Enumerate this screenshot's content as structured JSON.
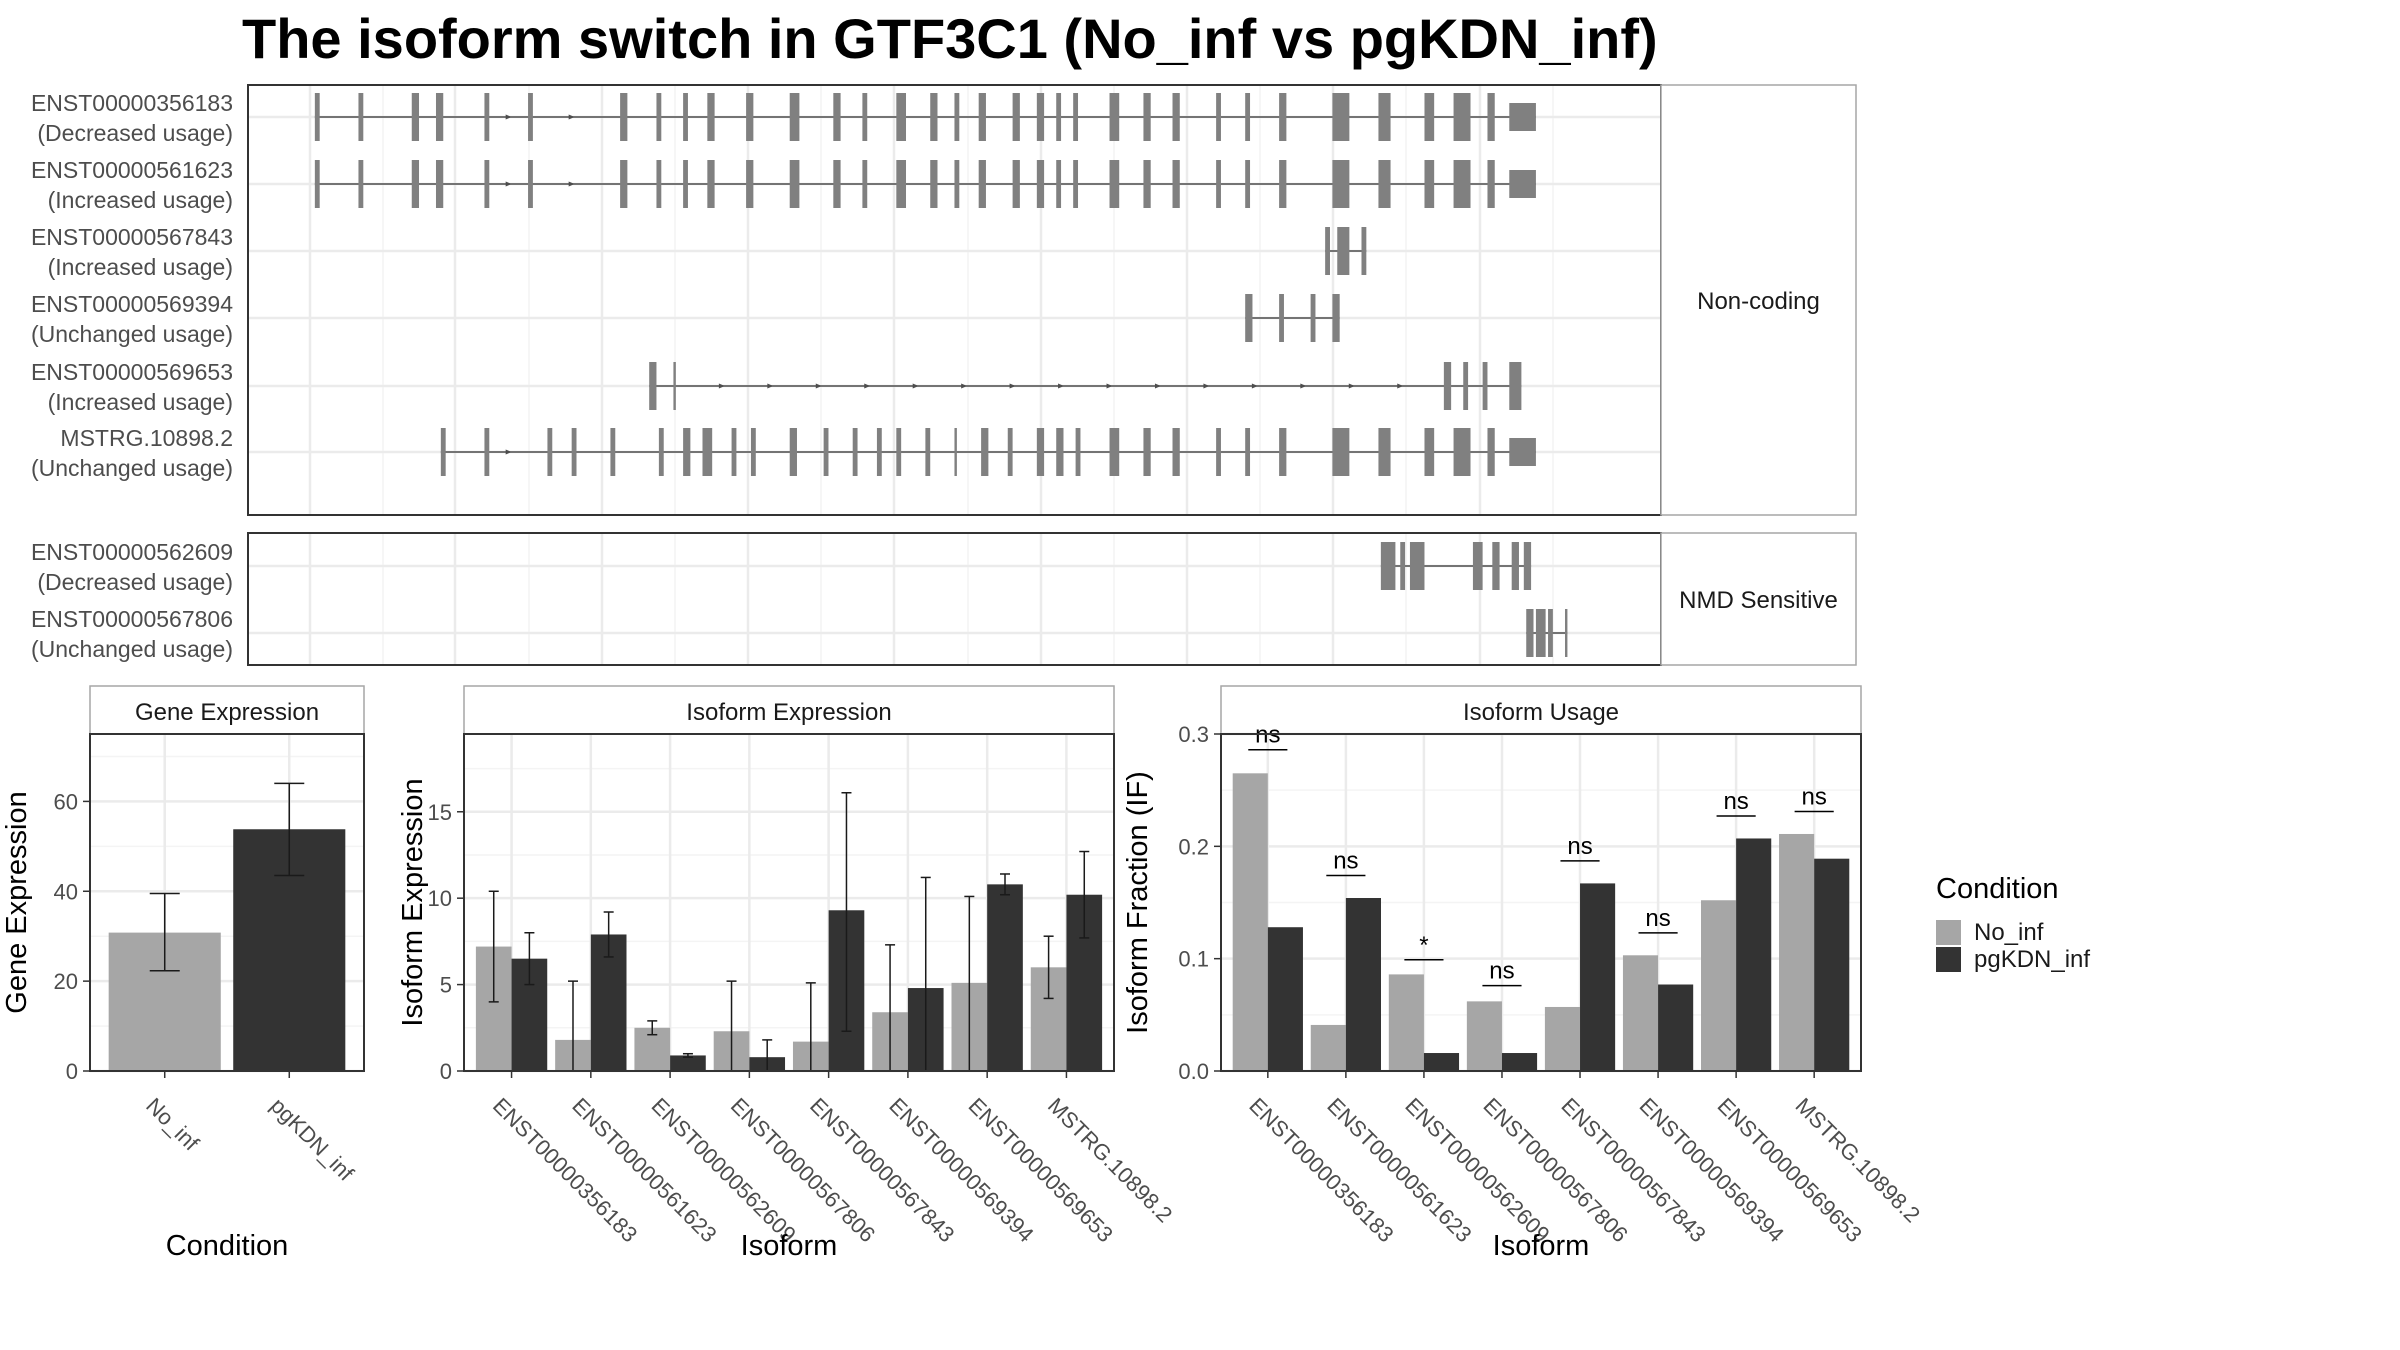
{
  "title": "The isoform switch in GTF3C1 (No_inf vs pgKDN_inf)",
  "colors": {
    "No_inf": "#a6a6a6",
    "pgKDN_inf": "#333333",
    "exon": "#808080"
  },
  "structure": {
    "groups": [
      {
        "label": "Non-coding",
        "tracks": [
          {
            "id": "ENST00000356183",
            "usage": "(Decreased usage)",
            "exons": [
              [
                1,
                2
              ],
              [
                10,
                11
              ],
              [
                21,
                22.5
              ],
              [
                26,
                27.5
              ],
              [
                36,
                37
              ],
              [
                45,
                46
              ],
              [
                64,
                65.5
              ],
              [
                71.5,
                72.5
              ],
              [
                77,
                78
              ],
              [
                82,
                83.5
              ],
              [
                90,
                91.5
              ],
              [
                99,
                101
              ],
              [
                108,
                109.5
              ],
              [
                114,
                115
              ],
              [
                121,
                123
              ],
              [
                128,
                129.5
              ],
              [
                133,
                134
              ],
              [
                138,
                139.5
              ],
              [
                145,
                146.5
              ],
              [
                150,
                151.5
              ],
              [
                154,
                155
              ],
              [
                157.5,
                158.5
              ],
              [
                165,
                167
              ],
              [
                172,
                173.5
              ],
              [
                178,
                179.5
              ],
              [
                187,
                188
              ],
              [
                193,
                194
              ],
              [
                200,
                201.5
              ],
              [
                211,
                214.5
              ],
              [
                220.5,
                223
              ],
              [
                230,
                232
              ],
              [
                236,
                239.5
              ],
              [
                243,
                244.5
              ],
              [
                247.5,
                253
              ]
            ],
            "arrows": [
              41,
              54
            ]
          },
          {
            "id": "ENST00000561623",
            "usage": "(Increased usage)",
            "exons": [
              [
                1,
                2
              ],
              [
                10,
                11
              ],
              [
                21,
                22.5
              ],
              [
                26,
                27.5
              ],
              [
                36,
                37
              ],
              [
                45,
                46
              ],
              [
                64,
                65.5
              ],
              [
                71.5,
                72.5
              ],
              [
                77,
                78
              ],
              [
                82,
                83.5
              ],
              [
                90,
                91.5
              ],
              [
                99,
                101
              ],
              [
                108,
                109.5
              ],
              [
                114,
                115
              ],
              [
                121,
                123
              ],
              [
                128,
                129.5
              ],
              [
                133,
                134
              ],
              [
                138,
                139.5
              ],
              [
                145,
                146.5
              ],
              [
                150,
                151.5
              ],
              [
                154,
                155
              ],
              [
                157.5,
                158.5
              ],
              [
                165,
                167
              ],
              [
                172,
                173.5
              ],
              [
                178,
                179.5
              ],
              [
                187,
                188
              ],
              [
                193,
                194
              ],
              [
                200,
                201.5
              ],
              [
                211,
                214.5
              ],
              [
                220.5,
                223
              ],
              [
                230,
                232
              ],
              [
                236,
                239.5
              ],
              [
                243,
                244.5
              ],
              [
                247.5,
                253
              ]
            ],
            "arrows": [
              41,
              54
            ]
          },
          {
            "id": "ENST00000567843",
            "usage": "(Increased usage)",
            "exons": [
              [
                209.5,
                210.5
              ],
              [
                212,
                214.5
              ],
              [
                217,
                218
              ]
            ],
            "arrows": []
          },
          {
            "id": "ENST00000569394",
            "usage": "(Unchanged usage)",
            "exons": [
              [
                193,
                194.5
              ],
              [
                200,
                201
              ],
              [
                206.5,
                207.5
              ],
              [
                211,
                212.5
              ]
            ],
            "arrows": []
          },
          {
            "id": "ENST00000569653",
            "usage": "(Increased usage)",
            "exons": [
              [
                70,
                71.5
              ],
              [
                75,
                75.5
              ],
              [
                234,
                235.5
              ],
              [
                238,
                239
              ],
              [
                242,
                243
              ],
              [
                247.5,
                250
              ]
            ],
            "arrows": [
              85,
              95,
              105,
              115,
              125,
              135,
              145,
              155,
              165,
              175,
              185,
              195,
              205,
              215,
              225
            ]
          },
          {
            "id": "MSTRG.10898.2",
            "usage": "(Unchanged usage)",
            "exons": [
              [
                27,
                28
              ],
              [
                36,
                37
              ],
              [
                49,
                50
              ],
              [
                54,
                55
              ],
              [
                62,
                63
              ],
              [
                72,
                73
              ],
              [
                77,
                78.5
              ],
              [
                81,
                83
              ],
              [
                87,
                88
              ],
              [
                91,
                92
              ],
              [
                99,
                100.5
              ],
              [
                106,
                107
              ],
              [
                112,
                113
              ],
              [
                117,
                118
              ],
              [
                121,
                122
              ],
              [
                127,
                128
              ],
              [
                133,
                133.5
              ],
              [
                138.5,
                140
              ],
              [
                144,
                145
              ],
              [
                150,
                151.5
              ],
              [
                154,
                155.5
              ],
              [
                158,
                159
              ],
              [
                165,
                167
              ],
              [
                172,
                173.5
              ],
              [
                178,
                179.5
              ],
              [
                187,
                188
              ],
              [
                193,
                194
              ],
              [
                200,
                201.5
              ],
              [
                211,
                214.5
              ],
              [
                220.5,
                223
              ],
              [
                230,
                232
              ],
              [
                236,
                239.5
              ],
              [
                243,
                244.5
              ],
              [
                247.5,
                253
              ]
            ],
            "arrows": [
              41
            ]
          }
        ]
      },
      {
        "label": "NMD Sensitive",
        "tracks": [
          {
            "id": "ENST00000562609",
            "usage": "(Decreased usage)",
            "exons": [
              [
                221,
                224
              ],
              [
                225,
                226
              ],
              [
                227,
                230
              ],
              [
                240,
                242
              ],
              [
                244,
                245.5
              ],
              [
                248,
                249.5
              ],
              [
                250.5,
                252
              ]
            ],
            "arrows": []
          },
          {
            "id": "ENST00000567806",
            "usage": "(Unchanged usage)",
            "exons": [
              [
                251,
                252.5
              ],
              [
                253,
                255
              ],
              [
                255.5,
                256.5
              ],
              [
                259,
                259.5
              ]
            ],
            "arrows": []
          }
        ]
      }
    ]
  },
  "chart_data": [
    {
      "type": "bar",
      "panel": "Gene Expression",
      "xlabel": "Condition",
      "ylabel": "Gene Expression",
      "ylim": [
        0,
        75
      ],
      "yticks": [
        0,
        20,
        40,
        60
      ],
      "categories": [
        "No_inf",
        "pgKDN_inf"
      ],
      "values": [
        30.8,
        53.8
      ],
      "errors": [
        [
          22.3,
          39.5
        ],
        [
          43.5,
          64.0
        ]
      ]
    },
    {
      "type": "bar",
      "panel": "Isoform Expression",
      "xlabel": "Isoform",
      "ylabel": "Isoform Expression",
      "ylim": [
        0,
        19.5
      ],
      "yticks": [
        0,
        5,
        10,
        15
      ],
      "categories": [
        "ENST00000356183",
        "ENST00000561623",
        "ENST00000562609",
        "ENST00000567806",
        "ENST00000567843",
        "ENST00000569394",
        "ENST00000569653",
        "MSTRG.10898.2"
      ],
      "series": [
        {
          "name": "No_inf",
          "values": [
            7.2,
            1.8,
            2.5,
            2.3,
            1.7,
            3.4,
            5.1,
            6.0
          ],
          "errors": [
            [
              4.0,
              10.4
            ],
            [
              0,
              5.2
            ],
            [
              2.1,
              2.9
            ],
            [
              0,
              5.2
            ],
            [
              0,
              5.1
            ],
            [
              0,
              7.3
            ],
            [
              0,
              10.1
            ],
            [
              4.2,
              7.8
            ]
          ]
        },
        {
          "name": "pgKDN_inf",
          "values": [
            6.5,
            7.9,
            0.9,
            0.8,
            9.3,
            4.8,
            10.8,
            10.2
          ],
          "errors": [
            [
              5.0,
              8.0
            ],
            [
              6.6,
              9.2
            ],
            [
              0.8,
              1.0
            ],
            [
              0,
              1.8
            ],
            [
              2.3,
              16.1
            ],
            [
              0,
              11.2
            ],
            [
              10.2,
              11.4
            ],
            [
              7.7,
              12.7
            ]
          ]
        }
      ]
    },
    {
      "type": "bar",
      "panel": "Isoform Usage",
      "xlabel": "Isoform",
      "ylabel": "Isoform Fraction (IF)",
      "ylim": [
        0,
        0.3
      ],
      "yticks": [
        0.0,
        0.1,
        0.2,
        0.3
      ],
      "categories": [
        "ENST00000356183",
        "ENST00000561623",
        "ENST00000562609",
        "ENST00000567806",
        "ENST00000567843",
        "ENST00000569394",
        "ENST00000569653",
        "MSTRG.10898.2"
      ],
      "series": [
        {
          "name": "No_inf",
          "values": [
            0.265,
            0.041,
            0.086,
            0.062,
            0.057,
            0.103,
            0.152,
            0.211
          ]
        },
        {
          "name": "pgKDN_inf",
          "values": [
            0.128,
            0.154,
            0.016,
            0.016,
            0.167,
            0.077,
            0.207,
            0.189
          ]
        }
      ],
      "significance": [
        "ns",
        "ns",
        "*",
        "ns",
        "ns",
        "ns",
        "ns",
        "ns"
      ],
      "significance_y": [
        0.286,
        0.174,
        0.099,
        0.076,
        0.187,
        0.123,
        0.227,
        0.231
      ]
    }
  ],
  "legend": {
    "title": "Condition",
    "items": [
      {
        "label": "No_inf",
        "color": "#a6a6a6"
      },
      {
        "label": "pgKDN_inf",
        "color": "#333333"
      }
    ]
  }
}
